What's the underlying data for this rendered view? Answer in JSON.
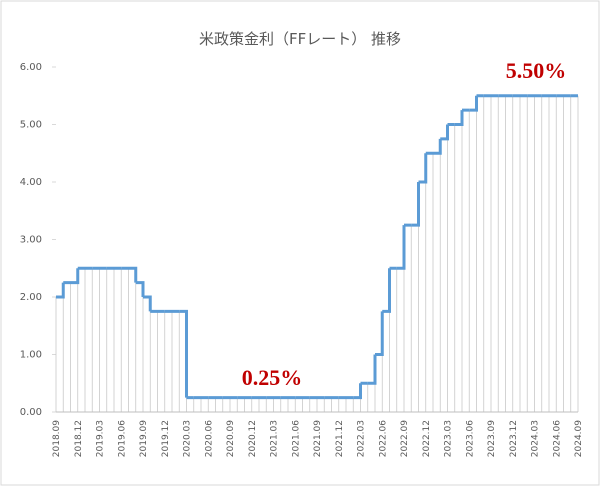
{
  "chart_data": {
    "type": "step",
    "title": "米政策金利（FFレート） 推移",
    "categories": [
      "2018.09",
      null,
      null,
      "2018.12",
      null,
      null,
      "2019.03",
      null,
      null,
      "2019.06",
      null,
      null,
      "2019.09",
      null,
      null,
      "2019.12",
      null,
      null,
      "2020.03",
      null,
      null,
      "2020.06",
      null,
      null,
      "2020.09",
      null,
      null,
      "2020.12",
      null,
      null,
      "2021.03",
      null,
      null,
      "2021.06",
      null,
      null,
      "2021.09",
      null,
      null,
      "2021.12",
      null,
      null,
      "2022.03",
      null,
      null,
      "2022.06",
      null,
      null,
      "2022.09",
      null,
      null,
      "2022.12",
      null,
      null,
      "2023.03",
      null,
      null,
      "2023.06",
      null,
      null,
      "2023.09",
      null,
      null,
      "2023.12",
      null,
      null,
      "2024.03",
      null,
      null,
      "2024.06",
      null,
      null,
      "2024.09"
    ],
    "values": [
      2.0,
      2.25,
      2.25,
      2.5,
      2.5,
      2.5,
      2.5,
      2.5,
      2.5,
      2.5,
      2.5,
      2.25,
      2.0,
      1.75,
      1.75,
      1.75,
      1.75,
      1.75,
      0.25,
      0.25,
      0.25,
      0.25,
      0.25,
      0.25,
      0.25,
      0.25,
      0.25,
      0.25,
      0.25,
      0.25,
      0.25,
      0.25,
      0.25,
      0.25,
      0.25,
      0.25,
      0.25,
      0.25,
      0.25,
      0.25,
      0.25,
      0.25,
      0.5,
      0.5,
      1.0,
      1.75,
      2.5,
      2.5,
      3.25,
      3.25,
      4.0,
      4.5,
      4.5,
      4.75,
      5.0,
      5.0,
      5.25,
      5.25,
      5.5,
      5.5,
      5.5,
      5.5,
      5.5,
      5.5,
      5.5,
      5.5,
      5.5,
      5.5,
      5.5,
      5.5,
      5.5,
      5.5,
      5.5
    ],
    "color": "#5b9bd5",
    "ylim": [
      0,
      6
    ],
    "yticks": [
      {
        "value": 0,
        "label": "0.00"
      },
      {
        "value": 1,
        "label": "1.00"
      },
      {
        "value": 2,
        "label": "2.00"
      },
      {
        "value": 3,
        "label": "3.00"
      },
      {
        "value": 4,
        "label": "4.00"
      },
      {
        "value": 5,
        "label": "5.00"
      },
      {
        "value": 6,
        "label": "6.00"
      }
    ],
    "annotations": [
      {
        "text": "0.25%"
      },
      {
        "text": "5.50%"
      }
    ]
  }
}
